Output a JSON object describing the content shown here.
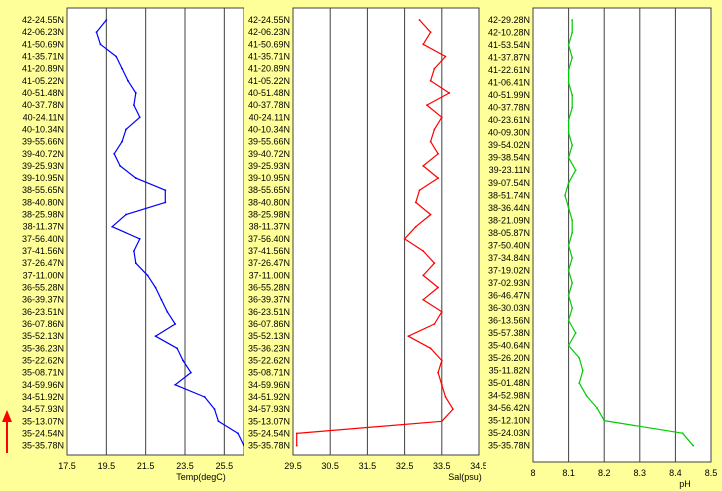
{
  "colors": {
    "panel_bg": "#ffff99",
    "plot_bg": "#ffffff",
    "grid": "#404040",
    "temp": "#0000ff",
    "sal": "#ff0000",
    "ph": "#00cc00",
    "arrow": "#ff0000"
  },
  "icons": {
    "direction": "up-arrow-icon"
  },
  "chart_data": [
    {
      "type": "line",
      "xlabel": "Temp(degC)",
      "xlim": [
        17.5,
        26.5
      ],
      "xticks": [
        "17.5",
        "19.5",
        "21.5",
        "23.5",
        "25.5"
      ],
      "ytick_labels": [
        "42-24.55N",
        "42-06.23N",
        "41-50.69N",
        "41-35.71N",
        "41-20.89N",
        "41-05.22N",
        "40-51.48N",
        "40-37.78N",
        "40-24.11N",
        "40-10.34N",
        "39-55.66N",
        "39-40.72N",
        "39-25.93N",
        "39-10.95N",
        "38-55.65N",
        "38-40.80N",
        "38-25.98N",
        "38-11.37N",
        "37-56.40N",
        "37-41.56N",
        "37-26.47N",
        "37-11.00N",
        "36-55.28N",
        "36-39.37N",
        "36-23.51N",
        "36-07.86N",
        "35-52.13N",
        "35-36.23N",
        "35-22.62N",
        "35-08.71N",
        "34-59.96N",
        "34-51.92N",
        "34-57.93N",
        "35-13.07N",
        "35-24.54N",
        "35-35.78N"
      ],
      "series": [
        {
          "color": "#0000ff",
          "y": [
            0,
            1,
            2,
            3,
            4,
            5,
            6,
            7,
            8,
            9,
            10,
            11,
            12,
            13,
            14,
            15,
            16,
            17,
            18,
            19,
            20,
            21,
            22,
            23,
            24,
            25,
            26,
            27,
            28,
            29,
            30,
            31,
            32,
            33,
            34,
            35
          ],
          "x": [
            19.5,
            19.0,
            19.2,
            20.0,
            20.3,
            20.6,
            21.0,
            20.9,
            21.2,
            20.5,
            20.3,
            19.9,
            20.2,
            21.0,
            22.5,
            22.5,
            20.5,
            19.8,
            21.2,
            20.9,
            21.0,
            21.6,
            22.0,
            22.3,
            22.6,
            23.0,
            22.0,
            23.1,
            23.4,
            23.8,
            23.0,
            24.5,
            25.0,
            25.2,
            26.2,
            26.5
          ]
        }
      ]
    },
    {
      "type": "line",
      "xlabel": "Sal(psu)",
      "xlim": [
        29.5,
        34.5
      ],
      "xticks": [
        "29.5",
        "30.5",
        "31.5",
        "32.5",
        "33.5",
        "34.5"
      ],
      "ytick_labels": [
        "42-24.55N",
        "42-06.23N",
        "41-50.69N",
        "41-35.71N",
        "41-20.89N",
        "41-05.22N",
        "40-51.48N",
        "40-37.78N",
        "40-24.11N",
        "40-10.34N",
        "39-55.66N",
        "39-40.72N",
        "39-25.93N",
        "39-10.95N",
        "38-55.65N",
        "38-40.80N",
        "38-25.98N",
        "38-11.37N",
        "37-56.40N",
        "37-41.56N",
        "37-26.47N",
        "37-11.00N",
        "36-55.28N",
        "36-39.37N",
        "36-23.51N",
        "36-07.86N",
        "35-52.13N",
        "35-36.23N",
        "35-22.62N",
        "35-08.71N",
        "34-59.96N",
        "34-51.92N",
        "34-57.93N",
        "35-13.07N",
        "35-24.54N",
        "35-35.78N"
      ],
      "series": [
        {
          "color": "#ff0000",
          "y": [
            0,
            1,
            2,
            3,
            4,
            5,
            6,
            7,
            8,
            9,
            10,
            11,
            12,
            13,
            14,
            15,
            16,
            17,
            18,
            19,
            20,
            21,
            22,
            23,
            24,
            25,
            26,
            27,
            28,
            29,
            30,
            31,
            32,
            33,
            34,
            35
          ],
          "x": [
            32.9,
            33.2,
            33.0,
            33.6,
            33.3,
            33.2,
            33.7,
            33.1,
            33.5,
            33.3,
            33.2,
            33.4,
            33.0,
            33.4,
            32.9,
            32.8,
            33.2,
            32.8,
            32.5,
            33.0,
            33.3,
            33.0,
            33.4,
            33.0,
            33.5,
            33.3,
            32.6,
            33.2,
            33.5,
            33.4,
            33.5,
            33.6,
            33.8,
            33.5,
            29.6,
            29.6
          ]
        }
      ]
    },
    {
      "type": "line",
      "xlabel": "pH",
      "xlim": [
        8.0,
        8.5
      ],
      "xticks": [
        "8",
        "8.1",
        "8.2",
        "8.3",
        "8.4",
        "8.5"
      ],
      "ytick_labels": [
        "42-29.28N",
        "42-10.28N",
        "41-53.54N",
        "41-37.87N",
        "41-22.61N",
        "41-06.41N",
        "40-51.99N",
        "40-37.78N",
        "40-23.61N",
        "40-09.30N",
        "39-54.02N",
        "39-38.54N",
        "39-23.11N",
        "39-07.54N",
        "38-51.74N",
        "38-36.44N",
        "38-21.09N",
        "38-05.87N",
        "37-50.40N",
        "37-34.84N",
        "37-19.02N",
        "37-02.93N",
        "36-46.47N",
        "36-30.03N",
        "36-13.56N",
        "35-57.38N",
        "35-40.64N",
        "35-26.20N",
        "35-11.82N",
        "35-01.48N",
        "34-52.98N",
        "34-56.42N",
        "35-12.10N",
        "35-24.03N",
        "35-35.78N"
      ],
      "series": [
        {
          "color": "#00cc00",
          "y": [
            0,
            1,
            2,
            3,
            4,
            5,
            6,
            7,
            8,
            9,
            10,
            11,
            12,
            13,
            14,
            15,
            16,
            17,
            18,
            19,
            20,
            21,
            22,
            23,
            24,
            25,
            26,
            27,
            28,
            29,
            30,
            31,
            32,
            33,
            34
          ],
          "x": [
            8.11,
            8.11,
            8.1,
            8.11,
            8.1,
            8.1,
            8.11,
            8.11,
            8.1,
            8.1,
            8.11,
            8.1,
            8.12,
            8.1,
            8.09,
            8.1,
            8.11,
            8.11,
            8.1,
            8.11,
            8.1,
            8.11,
            8.1,
            8.11,
            8.1,
            8.12,
            8.1,
            8.13,
            8.14,
            8.13,
            8.15,
            8.18,
            8.2,
            8.42,
            8.45
          ]
        }
      ]
    }
  ]
}
